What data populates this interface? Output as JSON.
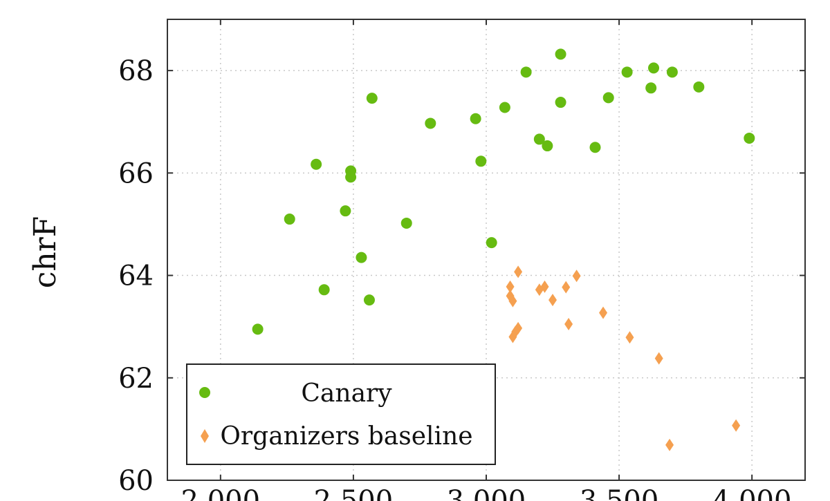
{
  "chart_data": {
    "type": "scatter",
    "ylabel": "chrF",
    "xlabel": "",
    "xlim": [
      1800,
      4200
    ],
    "ylim": [
      60,
      69
    ],
    "x_ticks": [
      2000,
      2500,
      3000,
      3500,
      4000
    ],
    "x_tick_labels": [
      "2,000",
      "2,500",
      "3,000",
      "3,500",
      "4,000"
    ],
    "y_ticks": [
      60,
      62,
      64,
      66,
      68
    ],
    "y_tick_labels": [
      "60",
      "62",
      "64",
      "66",
      "68"
    ],
    "grid": true,
    "legend_position": "bottom-left",
    "series": [
      {
        "name": "Canary",
        "marker": "circle",
        "color": "#66bb11",
        "points": [
          [
            2140,
            62.95
          ],
          [
            2260,
            65.1
          ],
          [
            2360,
            66.17
          ],
          [
            2390,
            63.72
          ],
          [
            2470,
            65.26
          ],
          [
            2490,
            66.04
          ],
          [
            2490,
            65.92
          ],
          [
            2530,
            64.35
          ],
          [
            2560,
            63.52
          ],
          [
            2570,
            67.46
          ],
          [
            2700,
            65.02
          ],
          [
            2790,
            66.97
          ],
          [
            2960,
            67.06
          ],
          [
            2980,
            66.23
          ],
          [
            3020,
            64.64
          ],
          [
            3070,
            67.28
          ],
          [
            3150,
            67.97
          ],
          [
            3200,
            66.66
          ],
          [
            3230,
            66.53
          ],
          [
            3280,
            67.38
          ],
          [
            3280,
            68.32
          ],
          [
            3410,
            66.5
          ],
          [
            3460,
            67.47
          ],
          [
            3530,
            67.97
          ],
          [
            3620,
            67.66
          ],
          [
            3630,
            68.05
          ],
          [
            3700,
            67.97
          ],
          [
            3800,
            67.68
          ],
          [
            3990,
            66.68
          ]
        ]
      },
      {
        "name": "Organizers baseline",
        "marker": "diamond",
        "color": "#f5a050",
        "points": [
          [
            3090,
            63.78
          ],
          [
            3090,
            63.6
          ],
          [
            3100,
            63.5
          ],
          [
            3100,
            62.8
          ],
          [
            3110,
            62.9
          ],
          [
            3120,
            62.97
          ],
          [
            3120,
            64.07
          ],
          [
            3200,
            63.72
          ],
          [
            3220,
            63.78
          ],
          [
            3250,
            63.52
          ],
          [
            3300,
            63.77
          ],
          [
            3310,
            63.05
          ],
          [
            3340,
            63.99
          ],
          [
            3440,
            63.27
          ],
          [
            3540,
            62.79
          ],
          [
            3650,
            62.38
          ],
          [
            3690,
            60.69
          ],
          [
            3940,
            61.07
          ]
        ]
      }
    ]
  }
}
